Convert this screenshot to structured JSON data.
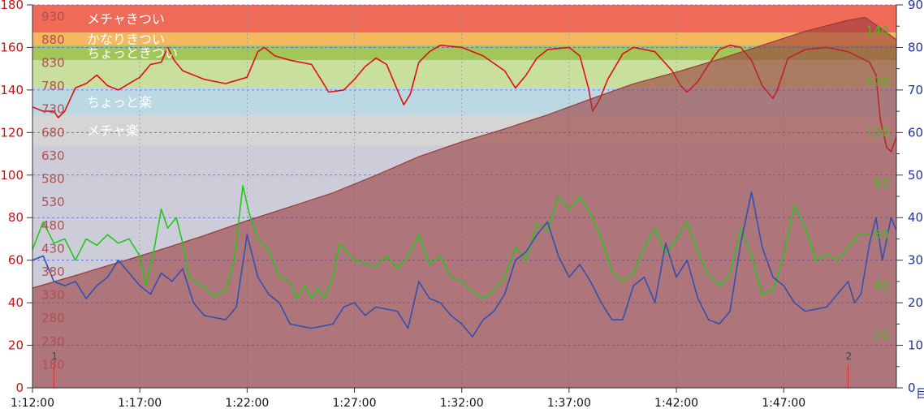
{
  "chart_data": {
    "type": "line",
    "x_ticks": [
      "1:12:00",
      "1:17:00",
      "1:22:00",
      "1:27:00",
      "1:32:00",
      "1:37:00",
      "1:42:00",
      "1:47:00"
    ],
    "x_range_minutes": [
      72,
      112.25
    ],
    "left_axis": {
      "ticks": [
        0,
        20,
        40,
        60,
        80,
        100,
        120,
        140,
        160,
        180
      ],
      "range": [
        0,
        180
      ],
      "color": "#cc1111"
    },
    "elevation_axis": {
      "ticks": [
        180,
        230,
        280,
        330,
        380,
        430,
        480,
        530,
        580,
        630,
        680,
        730,
        780,
        830,
        880,
        930
      ],
      "range": [
        130,
        955
      ],
      "color": "#b05050"
    },
    "right_axis": {
      "ticks": [
        0,
        10,
        20,
        30,
        40,
        50,
        60,
        70,
        80,
        90
      ],
      "range": [
        0,
        90
      ],
      "color": "#223399",
      "unit_fragment": "目"
    },
    "green_axis": {
      "ticks": [
        20,
        40,
        60,
        80,
        100,
        120,
        140
      ],
      "color": "#44bb22"
    },
    "hr_zones": [
      {
        "label": "メチャきつい",
        "from": 167,
        "to": 180,
        "color": "#f06a58"
      },
      {
        "label": "かなりきつい",
        "from": 161,
        "to": 167,
        "color": "#f5b760"
      },
      {
        "label": "ちょっときつい",
        "from": 154,
        "to": 161,
        "color": "#a2c657"
      },
      {
        "label": "",
        "from": 141,
        "to": 154,
        "color": "#c9df9e"
      },
      {
        "label": "ちょっと楽",
        "from": 128,
        "to": 141,
        "color": "#bcd9e3"
      },
      {
        "label": "メチャ楽",
        "from": 114,
        "to": 128,
        "color": "#d5d5d5"
      }
    ],
    "laps": [
      {
        "label": "1",
        "t": 73.0
      },
      {
        "label": "2",
        "t": 110.0
      }
    ],
    "series": [
      {
        "color": "#e01010",
        "axis": "left",
        "points": [
          [
            72,
            132
          ],
          [
            72.5,
            130
          ],
          [
            73,
            130
          ],
          [
            73.2,
            127
          ],
          [
            73.5,
            130
          ],
          [
            74,
            141
          ],
          [
            74.5,
            143
          ],
          [
            75,
            147
          ],
          [
            75.5,
            142
          ],
          [
            76,
            140
          ],
          [
            77,
            146
          ],
          [
            77.5,
            152
          ],
          [
            78,
            153
          ],
          [
            78.3,
            160
          ],
          [
            78.6,
            154
          ],
          [
            79,
            149
          ],
          [
            79.5,
            147
          ],
          [
            80,
            145
          ],
          [
            81,
            143
          ],
          [
            82,
            146
          ],
          [
            82.5,
            158
          ],
          [
            82.8,
            160
          ],
          [
            83.3,
            156
          ],
          [
            84,
            154
          ],
          [
            85,
            152
          ],
          [
            85.5,
            144
          ],
          [
            85.8,
            139
          ],
          [
            86.5,
            140
          ],
          [
            87,
            145
          ],
          [
            87.5,
            151
          ],
          [
            88,
            155
          ],
          [
            88.5,
            152
          ],
          [
            89,
            140
          ],
          [
            89.3,
            133
          ],
          [
            89.6,
            138
          ],
          [
            90,
            153
          ],
          [
            90.5,
            158
          ],
          [
            91,
            161
          ],
          [
            92,
            160
          ],
          [
            93,
            156
          ],
          [
            94,
            149
          ],
          [
            94.5,
            141
          ],
          [
            95,
            147
          ],
          [
            95.5,
            155
          ],
          [
            96,
            159
          ],
          [
            97,
            160
          ],
          [
            97.5,
            156
          ],
          [
            97.9,
            141
          ],
          [
            98.1,
            130
          ],
          [
            98.4,
            135
          ],
          [
            98.8,
            145
          ],
          [
            99.5,
            157
          ],
          [
            100,
            160
          ],
          [
            101,
            158
          ],
          [
            101.8,
            149
          ],
          [
            102.2,
            142
          ],
          [
            102.5,
            139
          ],
          [
            103,
            144
          ],
          [
            103.5,
            152
          ],
          [
            104,
            159
          ],
          [
            104.5,
            161
          ],
          [
            105,
            160
          ],
          [
            105.5,
            154
          ],
          [
            106,
            142
          ],
          [
            106.5,
            136
          ],
          [
            106.7,
            140
          ],
          [
            107.2,
            155
          ],
          [
            108,
            159
          ],
          [
            109,
            160
          ],
          [
            110,
            158
          ],
          [
            111,
            153
          ],
          [
            111.3,
            147
          ],
          [
            111.5,
            126
          ],
          [
            111.8,
            113
          ],
          [
            112,
            111
          ],
          [
            112.25,
            118
          ]
        ]
      },
      {
        "color": "#9a3a3a",
        "axis": "elevation",
        "points": [
          [
            72,
            345
          ],
          [
            74,
            372
          ],
          [
            76,
            400
          ],
          [
            78,
            428
          ],
          [
            80,
            458
          ],
          [
            82,
            490
          ],
          [
            84,
            520
          ],
          [
            86,
            550
          ],
          [
            88,
            588
          ],
          [
            90,
            628
          ],
          [
            92,
            660
          ],
          [
            94,
            688
          ],
          [
            96,
            718
          ],
          [
            98,
            752
          ],
          [
            100,
            785
          ],
          [
            102,
            810
          ],
          [
            104,
            838
          ],
          [
            106,
            868
          ],
          [
            108,
            898
          ],
          [
            110,
            922
          ],
          [
            110.8,
            928
          ],
          [
            111.5,
            905
          ],
          [
            112.25,
            880
          ]
        ]
      },
      {
        "color": "#22c81a",
        "axis": "left",
        "points": [
          [
            72,
            65
          ],
          [
            72.5,
            78
          ],
          [
            73,
            68
          ],
          [
            73.5,
            70
          ],
          [
            74,
            60
          ],
          [
            74.5,
            70
          ],
          [
            75,
            67
          ],
          [
            75.5,
            72
          ],
          [
            76,
            68
          ],
          [
            76.5,
            70
          ],
          [
            77,
            62
          ],
          [
            77.3,
            48
          ],
          [
            77.7,
            67
          ],
          [
            78,
            84
          ],
          [
            78.3,
            75
          ],
          [
            78.7,
            80
          ],
          [
            79,
            68
          ],
          [
            79.3,
            52
          ],
          [
            79.6,
            50
          ],
          [
            80,
            47
          ],
          [
            80.5,
            43
          ],
          [
            81,
            46
          ],
          [
            81.4,
            60
          ],
          [
            81.8,
            95
          ],
          [
            82.1,
            82
          ],
          [
            82.5,
            70
          ],
          [
            83,
            65
          ],
          [
            83.5,
            52
          ],
          [
            84,
            50
          ],
          [
            84.3,
            42
          ],
          [
            84.7,
            48
          ],
          [
            85,
            42
          ],
          [
            85.3,
            47
          ],
          [
            85.6,
            42
          ],
          [
            86,
            52
          ],
          [
            86.3,
            68
          ],
          [
            86.7,
            63
          ],
          [
            87,
            60
          ],
          [
            88,
            57
          ],
          [
            88.5,
            62
          ],
          [
            89,
            56
          ],
          [
            89.5,
            62
          ],
          [
            90,
            72
          ],
          [
            90.5,
            58
          ],
          [
            91,
            62
          ],
          [
            91.5,
            52
          ],
          [
            92,
            50
          ],
          [
            92.5,
            45
          ],
          [
            93,
            42
          ],
          [
            93.5,
            46
          ],
          [
            94,
            52
          ],
          [
            94.5,
            66
          ],
          [
            95,
            60
          ],
          [
            95.5,
            77
          ],
          [
            96,
            74
          ],
          [
            96.5,
            90
          ],
          [
            97,
            84
          ],
          [
            97.5,
            90
          ],
          [
            98,
            82
          ],
          [
            98.5,
            70
          ],
          [
            99,
            55
          ],
          [
            99.5,
            50
          ],
          [
            100,
            54
          ],
          [
            100.5,
            66
          ],
          [
            101,
            75
          ],
          [
            101.5,
            63
          ],
          [
            102,
            70
          ],
          [
            102.5,
            78
          ],
          [
            103,
            64
          ],
          [
            103.5,
            53
          ],
          [
            104,
            48
          ],
          [
            104.5,
            53
          ],
          [
            105,
            75
          ],
          [
            105.5,
            62
          ],
          [
            106,
            44
          ],
          [
            106.5,
            46
          ],
          [
            107,
            62
          ],
          [
            107.5,
            86
          ],
          [
            108,
            75
          ],
          [
            108.5,
            60
          ],
          [
            109,
            63
          ],
          [
            109.5,
            60
          ],
          [
            110,
            66
          ],
          [
            110.5,
            72
          ],
          [
            111,
            72
          ]
        ]
      },
      {
        "color": "#3350b0",
        "axis": "right",
        "points": [
          [
            72,
            30
          ],
          [
            72.5,
            31
          ],
          [
            73,
            25
          ],
          [
            73.5,
            24
          ],
          [
            74,
            25
          ],
          [
            74.5,
            21
          ],
          [
            75,
            24
          ],
          [
            75.5,
            26
          ],
          [
            76,
            30
          ],
          [
            76.5,
            27
          ],
          [
            77,
            24
          ],
          [
            77.5,
            22
          ],
          [
            78,
            27
          ],
          [
            78.5,
            25
          ],
          [
            79,
            28
          ],
          [
            79.5,
            20
          ],
          [
            80,
            17
          ],
          [
            81,
            16
          ],
          [
            81.5,
            19
          ],
          [
            82,
            36
          ],
          [
            82.5,
            26
          ],
          [
            83,
            22
          ],
          [
            83.5,
            20
          ],
          [
            84,
            15
          ],
          [
            85,
            14
          ],
          [
            86,
            15
          ],
          [
            86.5,
            19
          ],
          [
            87,
            20
          ],
          [
            87.5,
            17
          ],
          [
            88,
            19
          ],
          [
            89,
            18
          ],
          [
            89.5,
            14
          ],
          [
            90,
            25
          ],
          [
            90.5,
            21
          ],
          [
            91,
            20
          ],
          [
            91.5,
            17
          ],
          [
            92,
            15
          ],
          [
            92.5,
            12
          ],
          [
            93,
            16
          ],
          [
            93.5,
            18
          ],
          [
            94,
            22
          ],
          [
            94.5,
            30
          ],
          [
            95,
            32
          ],
          [
            95.5,
            36
          ],
          [
            96,
            39
          ],
          [
            96.5,
            31
          ],
          [
            97,
            26
          ],
          [
            97.5,
            29
          ],
          [
            98,
            25
          ],
          [
            98.5,
            20
          ],
          [
            99,
            16
          ],
          [
            99.5,
            16
          ],
          [
            100,
            24
          ],
          [
            100.5,
            26
          ],
          [
            101,
            20
          ],
          [
            101.5,
            34
          ],
          [
            102,
            26
          ],
          [
            102.5,
            30
          ],
          [
            103,
            21
          ],
          [
            103.5,
            16
          ],
          [
            104,
            15
          ],
          [
            104.5,
            18
          ],
          [
            105,
            34
          ],
          [
            105.5,
            46
          ],
          [
            106,
            33
          ],
          [
            106.5,
            26
          ],
          [
            107,
            24
          ],
          [
            107.5,
            20
          ],
          [
            108,
            18
          ],
          [
            109,
            19
          ],
          [
            109.5,
            22
          ],
          [
            110,
            25
          ],
          [
            110.3,
            20
          ],
          [
            110.6,
            22
          ],
          [
            111,
            34
          ],
          [
            111.3,
            40
          ],
          [
            111.6,
            30
          ],
          [
            112,
            40
          ],
          [
            112.25,
            37
          ]
        ]
      }
    ]
  }
}
